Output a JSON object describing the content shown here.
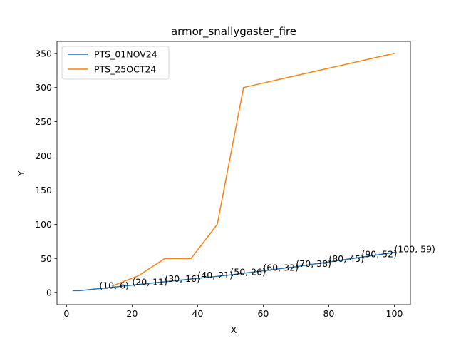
{
  "chart_data": {
    "type": "line",
    "title": "armor_snallygaster_fire",
    "xlabel": "X",
    "ylabel": "Y",
    "xlim": [
      -2.9,
      104.9
    ],
    "ylim": [
      -17.5,
      367.5
    ],
    "xticks": [
      0,
      20,
      40,
      60,
      80,
      100
    ],
    "yticks": [
      0,
      50,
      100,
      150,
      200,
      250,
      300,
      350
    ],
    "grid": false,
    "legend_position": "upper-left",
    "series": [
      {
        "name": "PTS_01NOV24",
        "color": "#1f77b4",
        "x": [
          2,
          4,
          10,
          20,
          30,
          40,
          50,
          60,
          70,
          80,
          90,
          100
        ],
        "y": [
          3,
          3,
          6,
          11,
          16,
          21,
          26,
          32,
          38,
          45,
          52,
          59
        ]
      },
      {
        "name": "PTS_25OCT24",
        "color": "#ff7f0e",
        "x": [
          14,
          22,
          30,
          38,
          46,
          54,
          100
        ],
        "y": [
          10,
          25,
          50,
          50,
          100,
          300,
          350
        ]
      }
    ],
    "annotations": [
      {
        "text": "(10, 6)",
        "x": 10,
        "y": 6
      },
      {
        "text": "(20, 11)",
        "x": 20,
        "y": 11
      },
      {
        "text": "(30, 16)",
        "x": 30,
        "y": 16
      },
      {
        "text": "(40, 21)",
        "x": 40,
        "y": 21
      },
      {
        "text": "(50, 26)",
        "x": 50,
        "y": 26
      },
      {
        "text": "(60, 32)",
        "x": 60,
        "y": 32
      },
      {
        "text": "(70, 38)",
        "x": 70,
        "y": 38
      },
      {
        "text": "(80, 45)",
        "x": 80,
        "y": 45
      },
      {
        "text": "(90, 52)",
        "x": 90,
        "y": 52
      },
      {
        "text": "(100, 59)",
        "x": 100,
        "y": 59
      }
    ]
  }
}
